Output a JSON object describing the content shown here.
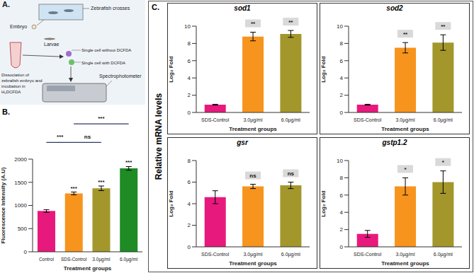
{
  "figure": {
    "panel_labels": [
      "A.",
      "B.",
      "C."
    ],
    "shared_ylabel": "Relative mRNA levels"
  },
  "diagram": {
    "labels": {
      "crosses": "Zebrafish crosses",
      "embryo": "Embryo",
      "larvae": "Larvae",
      "dissociation": "Dissociation of zebrafish embryo and incubation in H₂DCFDA",
      "without": "Single cell without DCFDA",
      "with": "Single cell with DCFDA",
      "instrument": "Spectrophotometer"
    }
  },
  "chart_data": [
    {
      "type": "bar",
      "categories": [
        "Control",
        "SDS-Control",
        "3.0µg/ml",
        "6.0µg/ml"
      ],
      "values": [
        880,
        1260,
        1370,
        1800
      ],
      "errors": [
        30,
        30,
        50,
        40
      ],
      "colors": [
        "#e8197d",
        "#f7941d",
        "#a3972c",
        "#1e8b24"
      ],
      "annotations": [
        null,
        "***",
        "***",
        "***"
      ],
      "comparisons": [
        {
          "from": "Control",
          "to": "SDS-Control",
          "label": "***"
        },
        {
          "from": "SDS-Control",
          "to": "3.0µg/ml",
          "label": "ns"
        },
        {
          "from": "SDS-Control",
          "to": "6.0µg/ml",
          "label": "***"
        }
      ],
      "xlabel": "Treatment groups",
      "ylabel": "Fluorescence Intensity (A.U)",
      "ylim": [
        0,
        2000
      ],
      "yticks": [
        0,
        500,
        1000,
        1500,
        2000
      ]
    },
    {
      "type": "bar",
      "title": "sod1",
      "categories": [
        "SDS-Control",
        "3.0µg/ml",
        "6.0µg/ml"
      ],
      "values": [
        0.9,
        8.8,
        9.1
      ],
      "errors": [
        0.05,
        0.5,
        0.4
      ],
      "colors": [
        "#e8197d",
        "#f7941d",
        "#a3972c"
      ],
      "annotations": [
        null,
        "**",
        "**"
      ],
      "xlabel": "Treatment groups",
      "ylabel": "Log₂ Fold",
      "ylim": [
        0,
        10
      ],
      "yticks": [
        0,
        2,
        4,
        6,
        8,
        10
      ]
    },
    {
      "type": "bar",
      "title": "sod2",
      "categories": [
        "SDS-Control",
        "3.0µg/ml",
        "6.0µg/ml"
      ],
      "values": [
        0.9,
        7.5,
        8.1
      ],
      "errors": [
        0.05,
        0.6,
        0.9
      ],
      "colors": [
        "#e8197d",
        "#f7941d",
        "#a3972c"
      ],
      "annotations": [
        null,
        "**",
        "**"
      ],
      "xlabel": "Treatment groups",
      "ylabel": "Log₂ Fold",
      "ylim": [
        0,
        10
      ],
      "yticks": [
        0,
        2,
        4,
        6,
        8,
        10
      ]
    },
    {
      "type": "bar",
      "title": "gsr",
      "categories": [
        "SDS-Control",
        "3.0µg/ml",
        "6.0µg/ml"
      ],
      "values": [
        4.6,
        5.6,
        5.7
      ],
      "errors": [
        0.6,
        0.2,
        0.3
      ],
      "colors": [
        "#e8197d",
        "#f7941d",
        "#a3972c"
      ],
      "annotations": [
        null,
        "ns",
        "ns"
      ],
      "xlabel": "Treatment groups",
      "ylabel": "Log₂ Fold",
      "ylim": [
        0,
        8
      ],
      "yticks": [
        0,
        2,
        4,
        6,
        8
      ]
    },
    {
      "type": "bar",
      "title": "gstp1.2",
      "categories": [
        "SDS-Control",
        "3.0µg/ml",
        "6.0µg/ml"
      ],
      "values": [
        1.5,
        7.0,
        7.5
      ],
      "errors": [
        0.4,
        1.0,
        1.3
      ],
      "colors": [
        "#e8197d",
        "#f7941d",
        "#a3972c"
      ],
      "annotations": [
        null,
        "*",
        "*"
      ],
      "xlabel": "Treatment groups",
      "ylabel": "Log₂ Fold",
      "ylim": [
        0,
        10
      ],
      "yticks": [
        0,
        2,
        4,
        6,
        8,
        10
      ]
    }
  ]
}
